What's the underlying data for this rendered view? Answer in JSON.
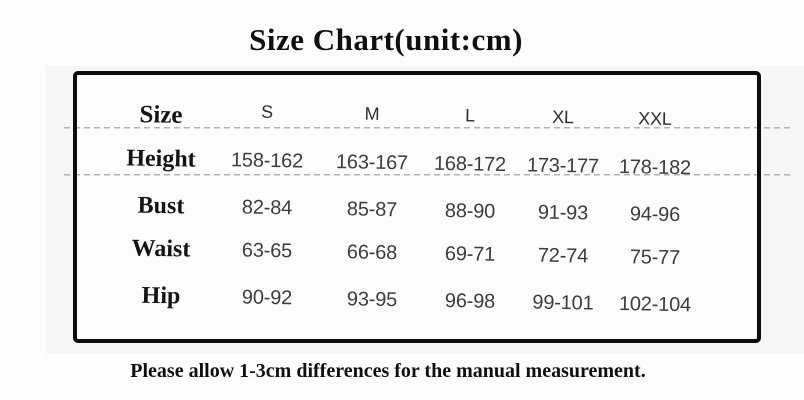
{
  "title": "Size Chart(unit:cm)",
  "table": {
    "header": {
      "label": "Size",
      "sizes": [
        "S",
        "M",
        "L",
        "XL",
        "XXL"
      ]
    },
    "rows": [
      {
        "label": "Height",
        "values": [
          "158-162",
          "163-167",
          "168-172",
          "173-177",
          "178-182"
        ]
      },
      {
        "label": "Bust",
        "values": [
          "82-84",
          "85-87",
          "88-90",
          "91-93",
          "94-96"
        ]
      },
      {
        "label": "Waist",
        "values": [
          "63-65",
          "66-68",
          "69-71",
          "72-74",
          "75-77"
        ]
      },
      {
        "label": "Hip",
        "values": [
          "90-92",
          "93-95",
          "96-98",
          "99-101",
          "102-104"
        ]
      }
    ]
  },
  "footnote": "Please allow 1-3cm differences for the manual measurement.",
  "colors": {
    "border": "#0d0d0d",
    "label_text": "#141414",
    "value_text": "#3c3c3c",
    "dashed_line": "#b3b3b3",
    "panel_background": "#f6f6f6",
    "page_background": "#fdfdfd"
  }
}
